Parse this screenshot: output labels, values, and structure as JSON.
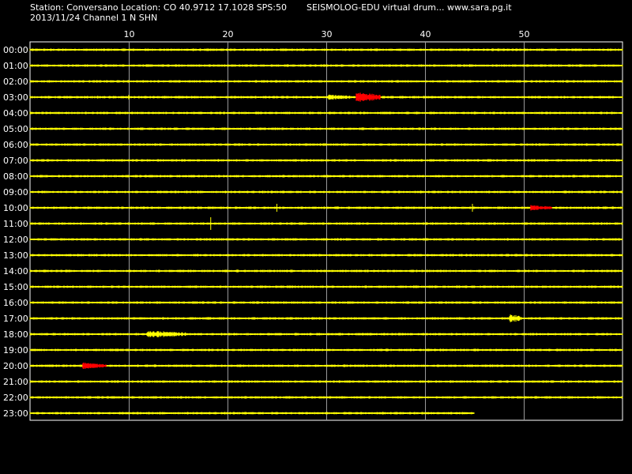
{
  "header": {
    "station_line": "Station: Conversano Location: CO 40.9712 17.1028 SPS:50",
    "app_line": "SEISMOLOG-EDU virtual drum... www.sara.pg.it",
    "date_channel_line": "2013/11/24  Channel 1 N SHN"
  },
  "time_axis": {
    "unit": "minutes",
    "range": [
      0,
      60
    ],
    "ticks": [
      10,
      20,
      30,
      40,
      50
    ],
    "tick_labels": [
      "10",
      "20",
      "30",
      "40",
      "50"
    ]
  },
  "rows": [
    {
      "label": "00:00"
    },
    {
      "label": "01:00"
    },
    {
      "label": "02:00"
    },
    {
      "label": "03:00"
    },
    {
      "label": "04:00"
    },
    {
      "label": "05:00"
    },
    {
      "label": "06:00"
    },
    {
      "label": "07:00"
    },
    {
      "label": "08:00"
    },
    {
      "label": "09:00"
    },
    {
      "label": "10:00"
    },
    {
      "label": "11:00"
    },
    {
      "label": "12:00"
    },
    {
      "label": "13:00"
    },
    {
      "label": "14:00"
    },
    {
      "label": "15:00"
    },
    {
      "label": "16:00"
    },
    {
      "label": "17:00"
    },
    {
      "label": "18:00"
    },
    {
      "label": "19:00"
    },
    {
      "label": "20:00"
    },
    {
      "label": "21:00"
    },
    {
      "label": "22:00"
    },
    {
      "label": "23:00"
    }
  ],
  "last_row_end_minute": 45,
  "events": [
    {
      "hour": 3,
      "start_min": 30.2,
      "end_min": 33.0,
      "color": "yellow",
      "amp": 3
    },
    {
      "hour": 3,
      "start_min": 33.0,
      "end_min": 35.5,
      "color": "red",
      "amp": 6
    },
    {
      "hour": 10,
      "start_min": 50.7,
      "end_min": 52.8,
      "color": "red",
      "amp": 3
    },
    {
      "hour": 20,
      "start_min": 5.3,
      "end_min": 7.7,
      "color": "red",
      "amp": 4
    },
    {
      "hour": 18,
      "start_min": 11.8,
      "end_min": 16.0,
      "color": "yellow",
      "amp": 4
    },
    {
      "hour": 17,
      "start_min": 48.5,
      "end_min": 49.8,
      "color": "yellow",
      "amp": 5
    }
  ],
  "spikes": [
    {
      "hour": 11,
      "min": 18.3,
      "amp": 8
    },
    {
      "hour": 10,
      "min": 25.0,
      "amp": 5
    },
    {
      "hour": 10,
      "min": 44.8,
      "amp": 5
    },
    {
      "hour": 3,
      "min": 10.0,
      "amp": 3
    }
  ],
  "colors": {
    "background": "#000000",
    "trace": "#ffff00",
    "event": "#ff0000",
    "grid": "#ffffff",
    "text": "#ffffff"
  }
}
